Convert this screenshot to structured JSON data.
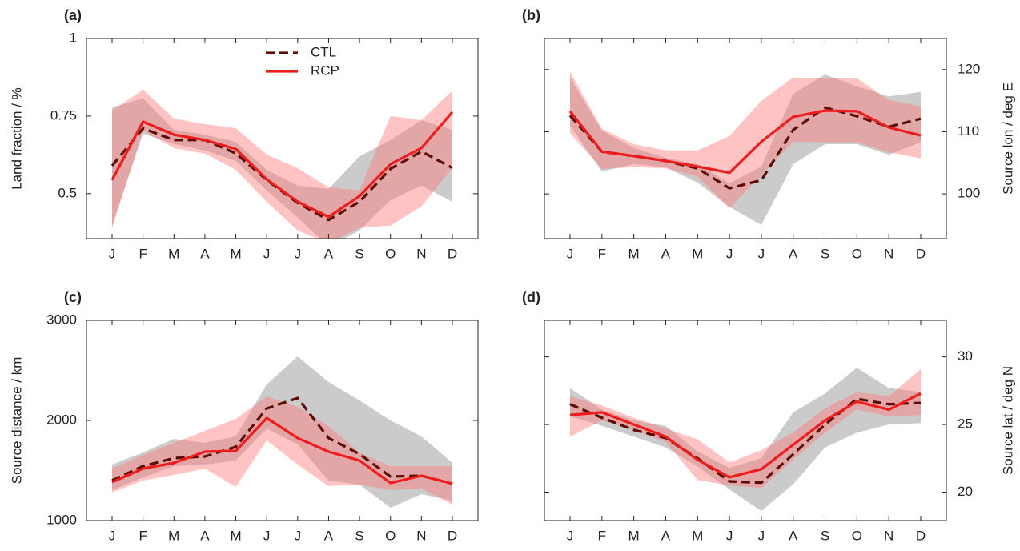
{
  "chart_data": [
    {
      "type": "line",
      "panel_label": "(a)",
      "y_label": "Land fraction / %",
      "y_axis_side": "left",
      "legend": true,
      "categories": [
        "J",
        "F",
        "M",
        "A",
        "M",
        "J",
        "J",
        "A",
        "S",
        "O",
        "N",
        "D"
      ],
      "ylim": [
        0.355,
        1
      ],
      "yticks": [
        0.5,
        0.75,
        1
      ],
      "series": [
        {
          "name": "CTL",
          "color": "#5c0c02",
          "dashed": true,
          "band_color": "#8c8c8c",
          "values": [
            0.59,
            0.71,
            0.673,
            0.673,
            0.63,
            0.544,
            0.47,
            0.415,
            0.474,
            0.58,
            0.636,
            0.583
          ],
          "upper": [
            0.778,
            0.807,
            0.706,
            0.69,
            0.667,
            0.577,
            0.526,
            0.515,
            0.62,
            0.673,
            0.737,
            0.706
          ],
          "lower": [
            0.397,
            0.693,
            0.66,
            0.639,
            0.606,
            0.51,
            0.423,
            0.33,
            0.381,
            0.479,
            0.526,
            0.474
          ]
        },
        {
          "name": "RCP",
          "color": "#ee1c1c",
          "dashed": false,
          "band_color": "#ff7a7a",
          "values": [
            0.544,
            0.732,
            0.69,
            0.673,
            0.644,
            0.546,
            0.474,
            0.425,
            0.492,
            0.595,
            0.647,
            0.763
          ],
          "upper": [
            0.768,
            0.835,
            0.742,
            0.724,
            0.711,
            0.626,
            0.582,
            0.52,
            0.51,
            0.75,
            0.737,
            0.832
          ],
          "lower": [
            0.389,
            0.704,
            0.647,
            0.629,
            0.577,
            0.474,
            0.381,
            0.34,
            0.39,
            0.397,
            0.459,
            0.583
          ]
        }
      ]
    },
    {
      "type": "line",
      "panel_label": "(b)",
      "y_label": "Source lon / deg E",
      "y_axis_side": "right",
      "legend": false,
      "categories": [
        "J",
        "F",
        "M",
        "A",
        "M",
        "J",
        "J",
        "A",
        "S",
        "O",
        "N",
        "D"
      ],
      "ylim": [
        92.8,
        125
      ],
      "yticks": [
        100,
        110,
        120
      ],
      "series": [
        {
          "color": "#5c0c02",
          "dashed": true,
          "band_color": "#8c8c8c",
          "values": [
            112.6,
            106.8,
            106.1,
            105.3,
            104.1,
            100.9,
            102.2,
            110.3,
            113.9,
            112.5,
            110.8,
            112.1
          ],
          "upper": [
            118.7,
            110.2,
            107.4,
            105.8,
            104.8,
            101.7,
            104.4,
            116.1,
            119.2,
            117.3,
            115.7,
            116.4
          ],
          "lower": [
            111.0,
            103.6,
            104.8,
            104.3,
            101.8,
            97.9,
            95.0,
            104.8,
            108.0,
            108.0,
            106.3,
            108.3
          ]
        },
        {
          "color": "#ee1c1c",
          "dashed": false,
          "band_color": "#ff7a7a",
          "values": [
            113.3,
            106.8,
            106.1,
            105.3,
            104.4,
            103.4,
            108.4,
            112.4,
            113.4,
            113.3,
            110.7,
            109.4
          ],
          "upper": [
            119.6,
            110.5,
            108.0,
            107.0,
            107.0,
            109.3,
            115.0,
            118.7,
            118.6,
            118.6,
            115.1,
            114.1
          ],
          "lower": [
            109.8,
            104.0,
            104.3,
            104.1,
            102.8,
            97.7,
            103.0,
            108.4,
            108.3,
            108.3,
            106.7,
            105.7
          ]
        }
      ]
    },
    {
      "type": "line",
      "panel_label": "(c)",
      "y_label": "Source distance / km",
      "y_axis_side": "left",
      "legend": false,
      "categories": [
        "J",
        "F",
        "M",
        "A",
        "M",
        "J",
        "J",
        "A",
        "S",
        "O",
        "N",
        "D"
      ],
      "ylim": [
        1000,
        3000
      ],
      "yticks": [
        1000,
        2000,
        3000
      ],
      "series": [
        {
          "color": "#5c0c02",
          "dashed": true,
          "band_color": "#8c8c8c",
          "values": [
            1400,
            1544,
            1624,
            1640,
            1736,
            2120,
            2224,
            1824,
            1664,
            1440,
            1448,
            1368
          ],
          "upper": [
            1560,
            1680,
            1816,
            1776,
            1840,
            2360,
            2640,
            2384,
            2200,
            2000,
            1840,
            1576
          ],
          "lower": [
            1304,
            1432,
            1544,
            1560,
            1600,
            1920,
            1760,
            1400,
            1360,
            1128,
            1264,
            1200
          ]
        },
        {
          "color": "#ee1c1c",
          "dashed": false,
          "band_color": "#ff7a7a",
          "values": [
            1384,
            1520,
            1576,
            1688,
            1696,
            2024,
            1824,
            1688,
            1600,
            1376,
            1448,
            1368
          ],
          "upper": [
            1520,
            1656,
            1776,
            1896,
            2016,
            2240,
            2136,
            1944,
            1680,
            1544,
            1544,
            1544
          ],
          "lower": [
            1280,
            1400,
            1456,
            1520,
            1336,
            1800,
            1560,
            1344,
            1360,
            1304,
            1320,
            1160
          ]
        }
      ]
    },
    {
      "type": "line",
      "panel_label": "(d)",
      "y_label": "Source lat / deg N",
      "y_axis_side": "right",
      "legend": false,
      "categories": [
        "J",
        "F",
        "M",
        "A",
        "M",
        "J",
        "J",
        "A",
        "S",
        "O",
        "N",
        "D"
      ],
      "ylim": [
        17.9,
        32.7
      ],
      "yticks": [
        20,
        25,
        30
      ],
      "series": [
        {
          "color": "#5c0c02",
          "dashed": true,
          "band_color": "#8c8c8c",
          "values": [
            26.5,
            25.5,
            24.6,
            24.0,
            22.5,
            20.8,
            20.7,
            22.8,
            25.0,
            26.9,
            26.5,
            26.6
          ],
          "upper": [
            27.7,
            26.1,
            25.3,
            24.9,
            23.0,
            21.8,
            22.5,
            25.9,
            27.3,
            29.2,
            27.7,
            27.4
          ],
          "lower": [
            25.6,
            24.9,
            24.1,
            23.3,
            21.9,
            20.2,
            18.6,
            20.6,
            23.3,
            24.4,
            25.0,
            25.1
          ]
        },
        {
          "color": "#ee1c1c",
          "dashed": false,
          "band_color": "#ff7a7a",
          "values": [
            25.7,
            25.9,
            25.0,
            24.1,
            22.4,
            21.1,
            21.7,
            23.5,
            25.3,
            26.7,
            26.1,
            27.3
          ],
          "upper": [
            27.1,
            26.4,
            25.5,
            24.7,
            23.9,
            22.2,
            23.1,
            24.4,
            26.2,
            27.4,
            27.1,
            29.1
          ],
          "lower": [
            24.1,
            25.3,
            24.6,
            23.7,
            20.9,
            20.5,
            20.3,
            22.4,
            24.4,
            26.1,
            25.6,
            25.7
          ]
        }
      ]
    }
  ]
}
